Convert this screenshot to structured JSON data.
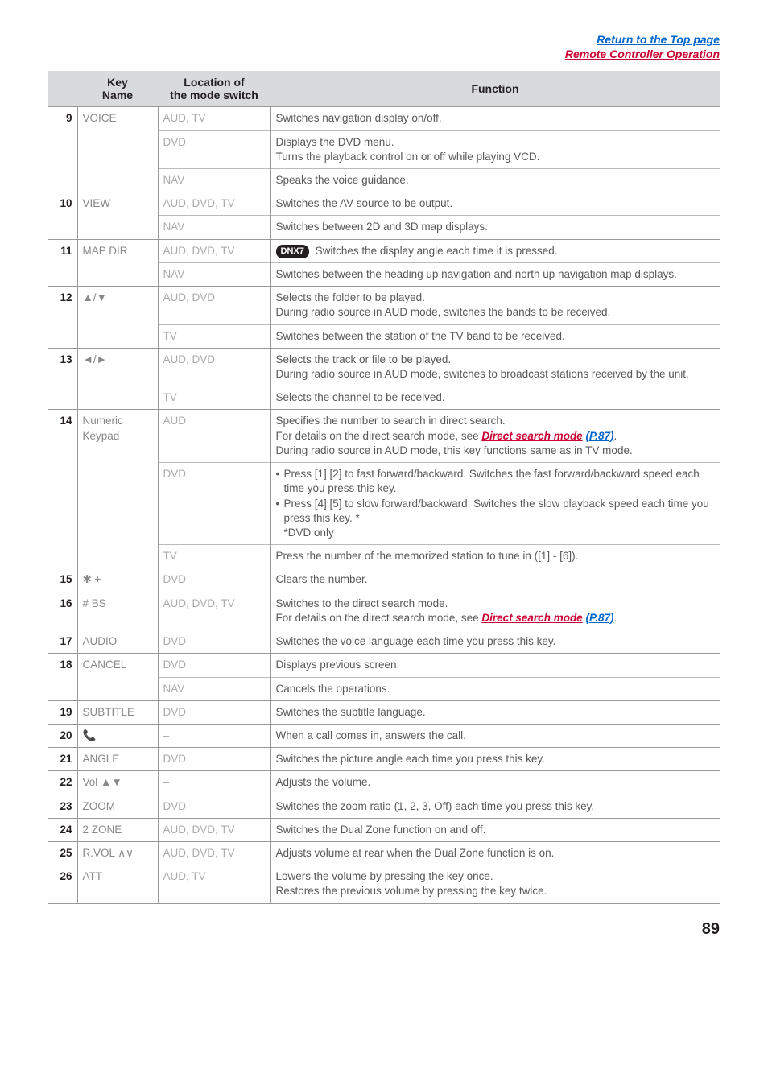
{
  "topLinks": {
    "line1": "Return to the Top page",
    "line2": "Remote Controller Operation"
  },
  "headers": {
    "num": "",
    "key": "Key\nName",
    "loc": "Location of\nthe mode switch",
    "func": "Function"
  },
  "rows": [
    {
      "num": "9",
      "key": "VOICE",
      "subs": [
        {
          "loc": "AUD, TV",
          "func": "Switches navigation display on/off."
        },
        {
          "loc": "DVD",
          "func": "Displays the DVD menu.\nTurns the playback control on or off while playing VCD."
        },
        {
          "loc": "NAV",
          "func": "Speaks the voice guidance."
        }
      ]
    },
    {
      "num": "10",
      "key": "VIEW",
      "subs": [
        {
          "loc": "AUD, DVD, TV",
          "func": "Switches the AV source to be output."
        },
        {
          "loc": "NAV",
          "func": "Switches between 2D and 3D map displays."
        }
      ]
    },
    {
      "num": "11",
      "key": "MAP DIR",
      "subs": [
        {
          "loc": "AUD, DVD, TV",
          "dnx": true,
          "func": " Switches the display angle each time it is pressed."
        },
        {
          "loc": "NAV",
          "func": "Switches between the heading up navigation and north up navigation map displays."
        }
      ]
    },
    {
      "num": "12",
      "key": "▲/▼",
      "subs": [
        {
          "loc": "AUD, DVD",
          "func": "Selects the folder to be played.\nDuring radio source in AUD mode, switches the bands to be received."
        },
        {
          "loc": "TV",
          "func": "Switches between the station of the TV band to be received."
        }
      ]
    },
    {
      "num": "13",
      "key": "◄/►",
      "subs": [
        {
          "loc": "AUD, DVD",
          "func": "Selects the track or file to be played.\nDuring radio source in AUD mode, switches to broadcast stations received by the unit."
        },
        {
          "loc": "TV",
          "func": "Selects the channel to be received."
        }
      ]
    },
    {
      "num": "14",
      "key": "Numeric Keypad",
      "subs": [
        {
          "loc": "AUD",
          "funcHtml": "Specifies the number to search in direct search.<br>For details on the direct search mode, see <b><i><span class='link-red'>Direct search mode</span> <span class='link-blue'>(P.87)</span></i></b>.<br>During radio source in AUD mode, this key functions same as in TV mode."
        },
        {
          "loc": "DVD",
          "funcHtml": "<ul><li>Press [1] [2] to fast forward/backward. Switches the fast forward/backward speed each time you press this key.</li><li>Press [4] [5] to slow forward/backward. Switches the slow playback speed each time you press this key. *<br>*DVD only</li></ul>"
        },
        {
          "loc": "TV",
          "func": "Press the number of the memorized station to tune in ([1] - [6])."
        }
      ]
    },
    {
      "num": "15",
      "key": "✱ +",
      "subs": [
        {
          "loc": "DVD",
          "func": "Clears the number."
        }
      ]
    },
    {
      "num": "16",
      "key": "# BS",
      "subs": [
        {
          "loc": "AUD, DVD, TV",
          "funcHtml": "Switches to the direct search mode.<br>For details on the direct search mode, see <b><i><span class='link-red'>Direct search mode</span> <span class='link-blue'>(P.87)</span></i></b>."
        }
      ]
    },
    {
      "num": "17",
      "key": "AUDIO",
      "subs": [
        {
          "loc": "DVD",
          "func": "Switches the voice language each time you press this key."
        }
      ]
    },
    {
      "num": "18",
      "key": "CANCEL",
      "subs": [
        {
          "loc": "DVD",
          "func": "Displays previous screen."
        },
        {
          "loc": "NAV",
          "func": "Cancels the operations."
        }
      ]
    },
    {
      "num": "19",
      "key": "SUBTITLE",
      "subs": [
        {
          "loc": "DVD",
          "func": "Switches the subtitle language."
        }
      ]
    },
    {
      "num": "20",
      "key": "📞",
      "subs": [
        {
          "loc": "–",
          "func": "When a call comes in, answers the call."
        }
      ]
    },
    {
      "num": "21",
      "key": "ANGLE",
      "subs": [
        {
          "loc": "DVD",
          "func": "Switches the picture angle each time you press this key."
        }
      ]
    },
    {
      "num": "22",
      "key": "Vol ▲▼",
      "subs": [
        {
          "loc": "–",
          "func": "Adjusts the volume."
        }
      ]
    },
    {
      "num": "23",
      "key": "ZOOM",
      "subs": [
        {
          "loc": "DVD",
          "func": "Switches the zoom ratio (1, 2, 3, Off) each time you press this key."
        }
      ]
    },
    {
      "num": "24",
      "key": "2 ZONE",
      "subs": [
        {
          "loc": "AUD, DVD, TV",
          "func": "Switches the Dual Zone function on and off."
        }
      ]
    },
    {
      "num": "25",
      "key": "R.VOL ∧∨",
      "subs": [
        {
          "loc": "AUD, DVD, TV",
          "func": "Adjusts volume at rear when the Dual Zone function is on."
        }
      ]
    },
    {
      "num": "26",
      "key": "ATT",
      "subs": [
        {
          "loc": "AUD, TV",
          "func": "Lowers the volume by pressing the key once.\nRestores the previous volume by pressing the key twice."
        }
      ]
    }
  ],
  "dnxLabel": "DNX7",
  "pageNumber": "89"
}
